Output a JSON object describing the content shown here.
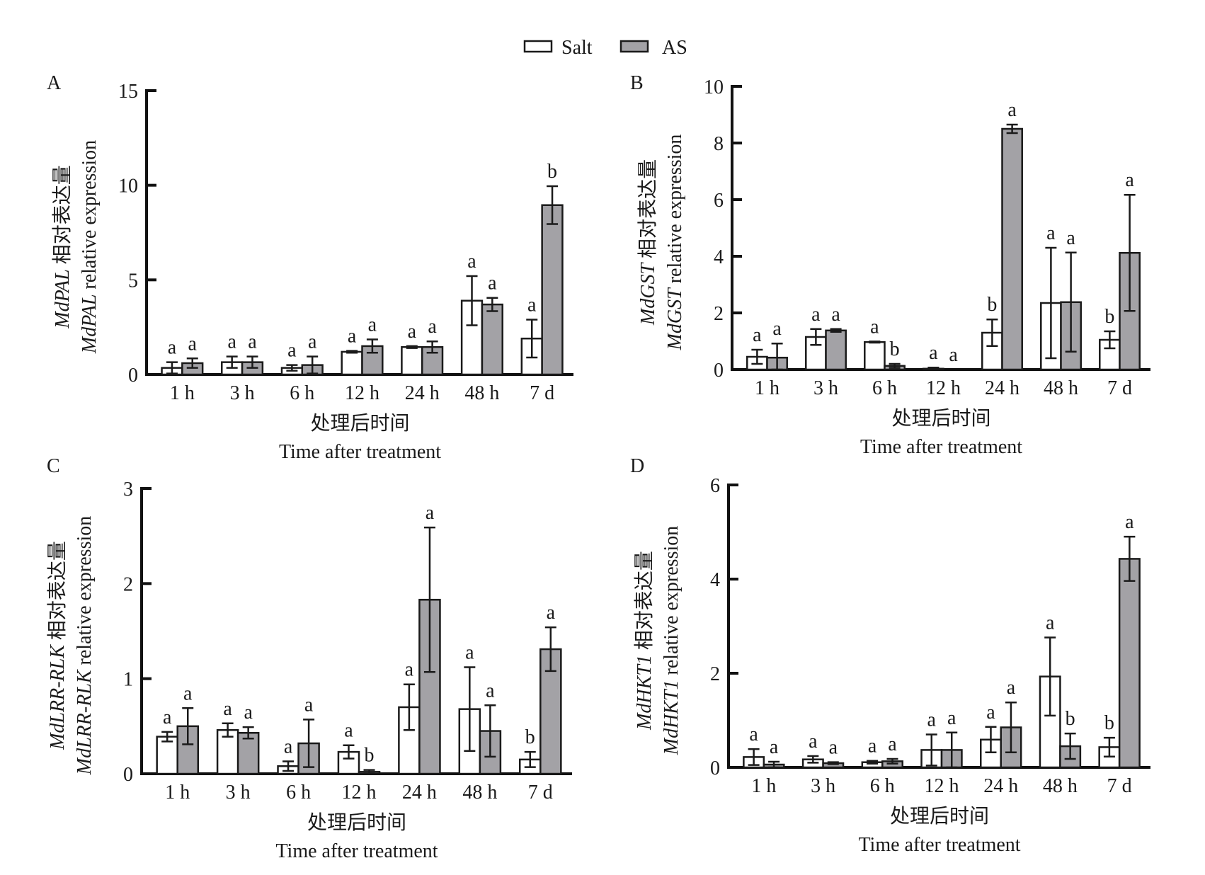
{
  "legend": {
    "items": [
      {
        "label": "Salt",
        "color": "#ffffff"
      },
      {
        "label": "AS",
        "color": "#a3a2a6"
      }
    ]
  },
  "colors": {
    "salt": "#ffffff",
    "as": "#a3a2a6",
    "stroke": "#1a1a1a"
  },
  "chart_data": [
    {
      "type": "bar",
      "panel": "A",
      "gene": "MdPAL",
      "ylabel_cn": "相对表达量",
      "ylabel_en": "relative expression",
      "xlabel_cn": "处理后时间",
      "xlabel_en": "Time after treatment",
      "categories": [
        "1 h",
        "3 h",
        "6 h",
        "12 h",
        "24 h",
        "48 h",
        "7 d"
      ],
      "ylim": [
        0,
        15
      ],
      "yticks": [
        0,
        5,
        10,
        15
      ],
      "series": [
        {
          "name": "Salt",
          "values": [
            0.35,
            0.65,
            0.35,
            1.2,
            1.45,
            3.9,
            1.9
          ],
          "errors": [
            0.3,
            0.3,
            0.15,
            0.05,
            0.05,
            1.3,
            1.0
          ],
          "letters": [
            "a",
            "a",
            "a",
            "a",
            "a",
            "a",
            "a"
          ]
        },
        {
          "name": "AS",
          "values": [
            0.6,
            0.65,
            0.5,
            1.5,
            1.45,
            3.7,
            8.95
          ],
          "errors": [
            0.25,
            0.3,
            0.45,
            0.35,
            0.3,
            0.35,
            1.0
          ],
          "letters": [
            "a",
            "a",
            "a",
            "a",
            "a",
            "a",
            "b"
          ]
        }
      ]
    },
    {
      "type": "bar",
      "panel": "B",
      "gene": "MdGST",
      "ylabel_cn": "相对表达量",
      "ylabel_en": "relative expression",
      "xlabel_cn": "处理后时间",
      "xlabel_en": "Time after treatment",
      "categories": [
        "1 h",
        "3 h",
        "6 h",
        "12 h",
        "24 h",
        "48 h",
        "7 d"
      ],
      "ylim": [
        0,
        10
      ],
      "yticks": [
        0,
        2,
        4,
        6,
        8,
        10
      ],
      "series": [
        {
          "name": "Salt",
          "values": [
            0.45,
            1.15,
            0.97,
            0.03,
            1.3,
            2.35,
            1.05
          ],
          "errors": [
            0.25,
            0.28,
            0.02,
            0.04,
            0.47,
            1.95,
            0.3
          ],
          "letters": [
            "a",
            "a",
            "a",
            "a",
            "b",
            "a",
            "b"
          ]
        },
        {
          "name": "AS",
          "values": [
            0.42,
            1.38,
            0.13,
            0.0,
            8.5,
            2.38,
            4.12
          ],
          "errors": [
            0.5,
            0.05,
            0.07,
            0.0,
            0.15,
            1.75,
            2.05
          ],
          "letters": [
            "a",
            "a",
            "b",
            "a",
            "a",
            "a",
            "a"
          ]
        }
      ]
    },
    {
      "type": "bar",
      "panel": "C",
      "gene": "MdLRR-RLK",
      "ylabel_cn": "相对表达量",
      "ylabel_en": "relative expression",
      "xlabel_cn": "处理后时间",
      "xlabel_en": "Time after treatment",
      "categories": [
        "1 h",
        "3 h",
        "6 h",
        "12 h",
        "24 h",
        "48 h",
        "7 d"
      ],
      "ylim": [
        0,
        3
      ],
      "yticks": [
        0,
        1,
        2,
        3
      ],
      "series": [
        {
          "name": "Salt",
          "values": [
            0.39,
            0.46,
            0.08,
            0.23,
            0.7,
            0.68,
            0.15
          ],
          "errors": [
            0.05,
            0.07,
            0.05,
            0.07,
            0.24,
            0.44,
            0.08
          ],
          "letters": [
            "a",
            "a",
            "a",
            "a",
            "a",
            "a",
            "b"
          ]
        },
        {
          "name": "AS",
          "values": [
            0.5,
            0.43,
            0.32,
            0.02,
            1.83,
            0.45,
            1.31
          ],
          "errors": [
            0.19,
            0.06,
            0.25,
            0.02,
            0.76,
            0.27,
            0.23
          ],
          "letters": [
            "a",
            "a",
            "a",
            "b",
            "a",
            "a",
            "a"
          ]
        }
      ]
    },
    {
      "type": "bar",
      "panel": "D",
      "gene": "MdHKT1",
      "ylabel_cn": "相对表达量",
      "ylabel_en": "relative expression",
      "xlabel_cn": "处理后时间",
      "xlabel_en": "Time after treatment",
      "categories": [
        "1 h",
        "3 h",
        "6 h",
        "12 h",
        "24 h",
        "48 h",
        "7 d"
      ],
      "ylim": [
        0,
        6
      ],
      "yticks": [
        0,
        2,
        4,
        6
      ],
      "series": [
        {
          "name": "Salt",
          "values": [
            0.22,
            0.17,
            0.11,
            0.37,
            0.59,
            1.93,
            0.43
          ],
          "errors": [
            0.17,
            0.07,
            0.03,
            0.33,
            0.27,
            0.83,
            0.2
          ],
          "letters": [
            "a",
            "a",
            "a",
            "a",
            "a",
            "a",
            "b"
          ]
        },
        {
          "name": "AS",
          "values": [
            0.06,
            0.09,
            0.13,
            0.37,
            0.85,
            0.45,
            4.43
          ],
          "errors": [
            0.06,
            0.02,
            0.05,
            0.37,
            0.53,
            0.27,
            0.47
          ],
          "letters": [
            "a",
            "a",
            "a",
            "a",
            "a",
            "b",
            "a"
          ]
        }
      ]
    }
  ]
}
